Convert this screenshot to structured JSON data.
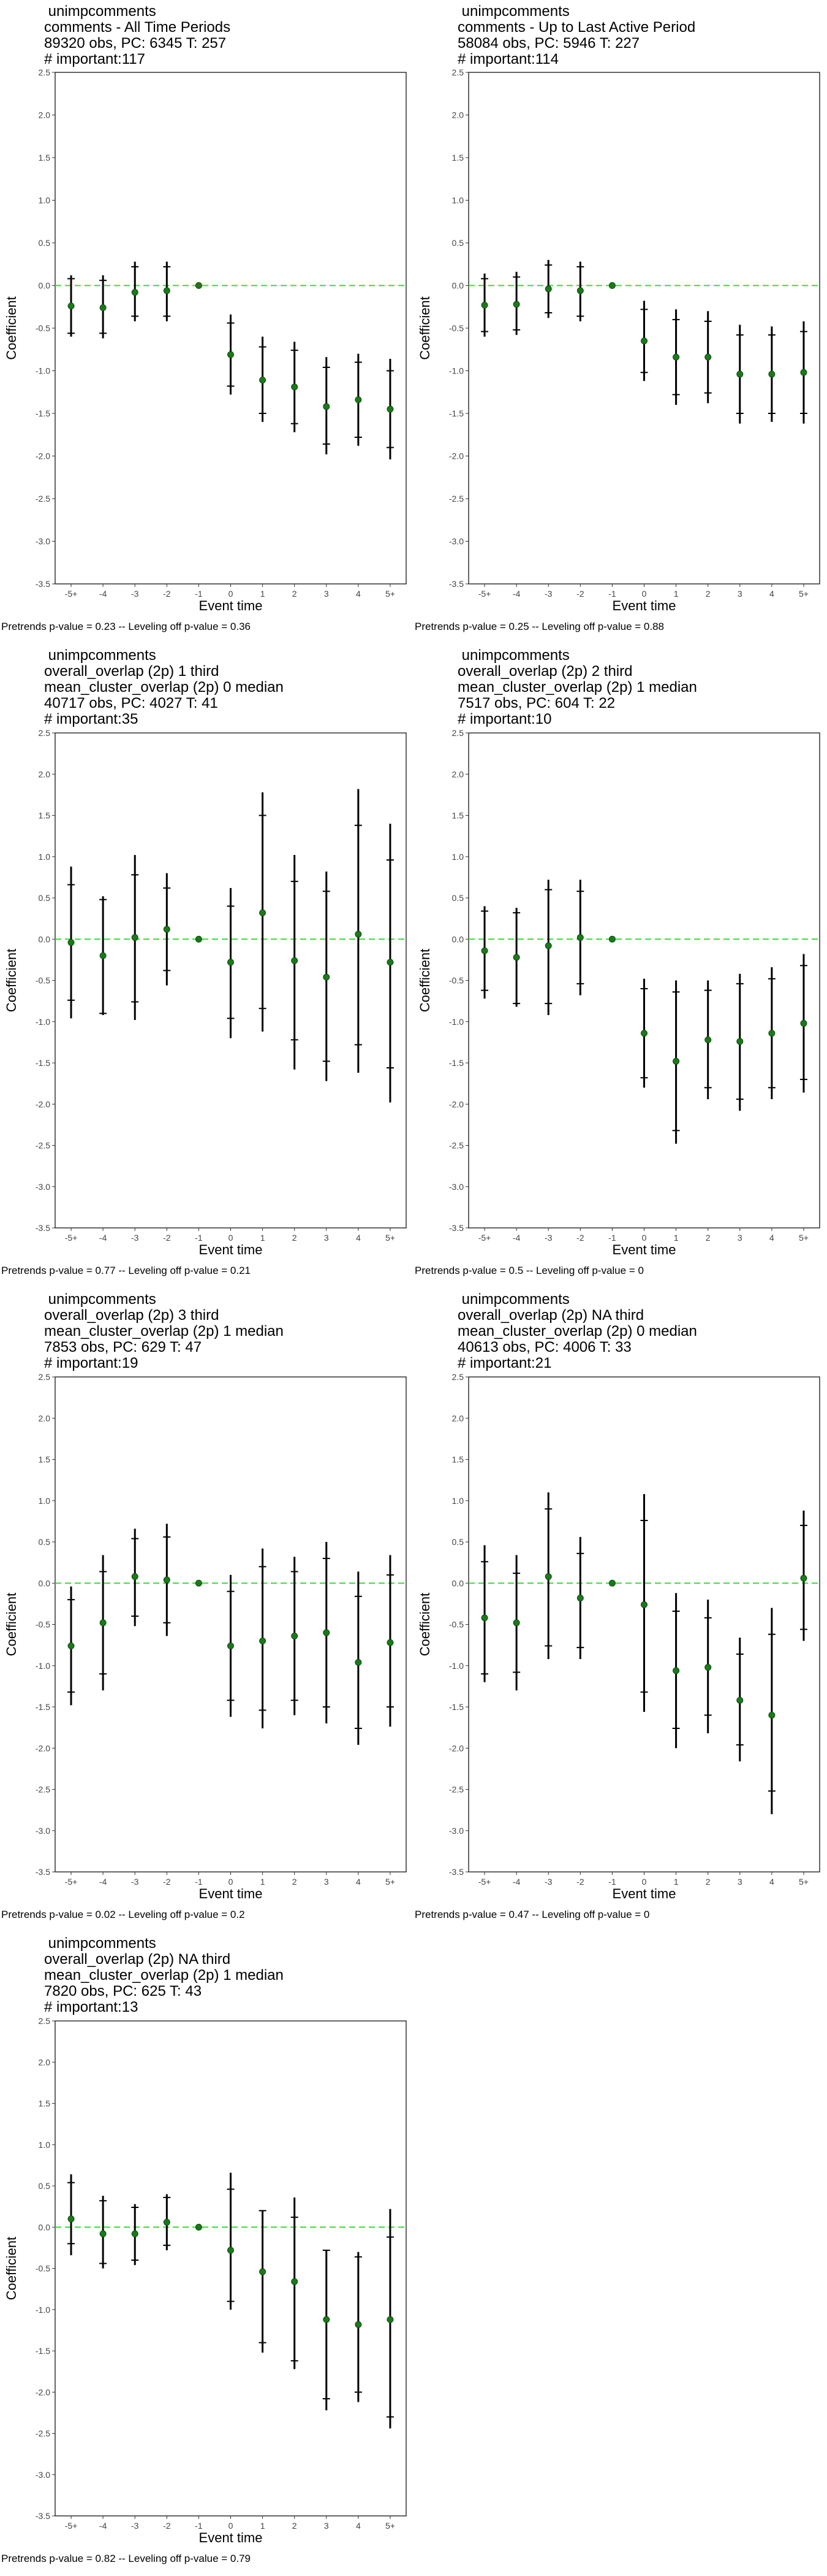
{
  "colors": {
    "point": "#1a7a1a",
    "zero_line": "#33dd33",
    "error_bar": "#000000",
    "frame": "#000000"
  },
  "chart_data": [
    {
      "type": "scatter",
      "title_lines": [
        " unimpcomments",
        "comments - All Time Periods",
        "89320 obs, PC: 6345 T: 257",
        "# important:117"
      ],
      "xlabel": "Event time",
      "ylabel": "Coefficient",
      "categories": [
        "-5+",
        "-4",
        "-3",
        "-2",
        "-1",
        "0",
        "1",
        "2",
        "3",
        "4",
        "5+"
      ],
      "ylim": [
        -3.5,
        2.5
      ],
      "grid": false,
      "y_ticks": [
        "-3.5",
        "-3.0",
        "-2.5",
        "-2.0",
        "-1.5",
        "-1.0",
        "-0.5",
        "0.0",
        "0.5",
        "1.0",
        "1.5",
        "2.0",
        "2.5"
      ],
      "values": [
        -0.24,
        -0.26,
        -0.08,
        -0.06,
        0.0,
        -0.81,
        -1.11,
        -1.19,
        -1.42,
        -1.34,
        -1.45
      ],
      "ci95_low": [
        -0.6,
        -0.62,
        -0.42,
        -0.42,
        0.0,
        -1.28,
        -1.6,
        -1.72,
        -1.98,
        -1.88,
        -2.04
      ],
      "ci95_high": [
        0.12,
        0.12,
        0.28,
        0.28,
        0.0,
        -0.34,
        -0.6,
        -0.66,
        -0.84,
        -0.8,
        -0.86
      ],
      "ci90_low": [
        -0.56,
        -0.56,
        -0.36,
        -0.36,
        0.0,
        -1.18,
        -1.5,
        -1.62,
        -1.86,
        -1.78,
        -1.9
      ],
      "ci90_high": [
        0.08,
        0.06,
        0.22,
        0.22,
        0.0,
        -0.44,
        -0.72,
        -0.76,
        -0.96,
        -0.9,
        -1.0
      ],
      "footer": "Pretrends p-value = 0.23 -- Leveling off p-value = 0.36"
    },
    {
      "type": "scatter",
      "title_lines": [
        " unimpcomments",
        "comments - Up to Last Active Period",
        "58084 obs, PC: 5946 T: 227",
        "# important:114"
      ],
      "xlabel": "Event time",
      "ylabel": "Coefficient",
      "categories": [
        "-5+",
        "-4",
        "-3",
        "-2",
        "-1",
        "0",
        "1",
        "2",
        "3",
        "4",
        "5+"
      ],
      "ylim": [
        -3.5,
        2.5
      ],
      "grid": false,
      "y_ticks": [
        "-3.5",
        "-3.0",
        "-2.5",
        "-2.0",
        "-1.5",
        "-1.0",
        "-0.5",
        "0.0",
        "0.5",
        "1.0",
        "1.5",
        "2.0",
        "2.5"
      ],
      "values": [
        -0.23,
        -0.22,
        -0.04,
        -0.06,
        0.0,
        -0.65,
        -0.84,
        -0.84,
        -1.04,
        -1.04,
        -1.02
      ],
      "ci95_low": [
        -0.6,
        -0.58,
        -0.38,
        -0.42,
        0.0,
        -1.12,
        -1.4,
        -1.38,
        -1.62,
        -1.6,
        -1.62
      ],
      "ci95_high": [
        0.14,
        0.16,
        0.3,
        0.28,
        0.0,
        -0.18,
        -0.28,
        -0.3,
        -0.46,
        -0.48,
        -0.42
      ],
      "ci90_low": [
        -0.54,
        -0.52,
        -0.32,
        -0.36,
        0.0,
        -1.02,
        -1.28,
        -1.26,
        -1.5,
        -1.5,
        -1.5
      ],
      "ci90_high": [
        0.08,
        0.1,
        0.24,
        0.22,
        0.0,
        -0.28,
        -0.4,
        -0.42,
        -0.58,
        -0.58,
        -0.54
      ],
      "footer": "Pretrends p-value = 0.25 -- Leveling off p-value = 0.88"
    },
    {
      "type": "scatter",
      "title_lines": [
        " unimpcomments",
        "overall_overlap (2p) 1 third",
        "mean_cluster_overlap (2p) 0 median",
        "40717 obs, PC: 4027 T: 41",
        "# important:35"
      ],
      "xlabel": "Event time",
      "ylabel": "Coefficient",
      "categories": [
        "-5+",
        "-4",
        "-3",
        "-2",
        "-1",
        "0",
        "1",
        "2",
        "3",
        "4",
        "5+"
      ],
      "ylim": [
        -3.5,
        2.5
      ],
      "grid": false,
      "y_ticks": [
        "-3.5",
        "-3.0",
        "-2.5",
        "-2.0",
        "-1.5",
        "-1.0",
        "-0.5",
        "0.0",
        "0.5",
        "1.0",
        "1.5",
        "2.0",
        "2.5"
      ],
      "values": [
        -0.04,
        -0.2,
        0.02,
        0.12,
        0.0,
        -0.28,
        0.32,
        -0.26,
        -0.46,
        0.06,
        -0.28
      ],
      "ci95_low": [
        -0.96,
        -0.92,
        -0.98,
        -0.56,
        0.0,
        -1.2,
        -1.12,
        -1.58,
        -1.72,
        -1.62,
        -1.98
      ],
      "ci95_high": [
        0.88,
        0.52,
        1.02,
        0.8,
        0.0,
        0.62,
        1.78,
        1.02,
        0.82,
        1.82,
        1.4
      ],
      "ci90_low": [
        -0.74,
        -0.9,
        -0.76,
        -0.38,
        0.0,
        -0.96,
        -0.84,
        -1.22,
        -1.48,
        -1.28,
        -1.56
      ],
      "ci90_high": [
        0.66,
        0.48,
        0.78,
        0.62,
        0.0,
        0.4,
        1.5,
        0.7,
        0.58,
        1.38,
        0.96
      ],
      "footer": "Pretrends p-value = 0.77 -- Leveling off p-value = 0.21"
    },
    {
      "type": "scatter",
      "title_lines": [
        " unimpcomments",
        "overall_overlap (2p) 2 third",
        "mean_cluster_overlap (2p) 1 median",
        "7517 obs, PC: 604 T: 22",
        "# important:10"
      ],
      "xlabel": "Event time",
      "ylabel": "Coefficient",
      "categories": [
        "-5+",
        "-4",
        "-3",
        "-2",
        "-1",
        "0",
        "1",
        "2",
        "3",
        "4",
        "5+"
      ],
      "ylim": [
        -3.5,
        2.5
      ],
      "grid": false,
      "y_ticks": [
        "-3.5",
        "-3.0",
        "-2.5",
        "-2.0",
        "-1.5",
        "-1.0",
        "-0.5",
        "0.0",
        "0.5",
        "1.0",
        "1.5",
        "2.0",
        "2.5"
      ],
      "values": [
        -0.14,
        -0.22,
        -0.08,
        0.02,
        0.0,
        -1.14,
        -1.48,
        -1.22,
        -1.24,
        -1.14,
        -1.02
      ],
      "ci95_low": [
        -0.72,
        -0.82,
        -0.92,
        -0.68,
        0.0,
        -1.8,
        -2.48,
        -1.94,
        -2.08,
        -1.94,
        -1.86
      ],
      "ci95_high": [
        0.4,
        0.38,
        0.72,
        0.72,
        0.0,
        -0.48,
        -0.5,
        -0.5,
        -0.42,
        -0.34,
        -0.18
      ],
      "ci90_low": [
        -0.62,
        -0.78,
        -0.78,
        -0.54,
        0.0,
        -1.68,
        -2.32,
        -1.8,
        -1.94,
        -1.8,
        -1.7
      ],
      "ci90_high": [
        0.34,
        0.32,
        0.6,
        0.58,
        0.0,
        -0.6,
        -0.64,
        -0.62,
        -0.54,
        -0.48,
        -0.32
      ],
      "footer": "Pretrends p-value = 0.5 -- Leveling off p-value = 0"
    },
    {
      "type": "scatter",
      "title_lines": [
        " unimpcomments",
        "overall_overlap (2p) 3 third",
        "mean_cluster_overlap (2p) 1 median",
        "7853 obs, PC: 629 T: 47",
        "# important:19"
      ],
      "xlabel": "Event time",
      "ylabel": "Coefficient",
      "categories": [
        "-5+",
        "-4",
        "-3",
        "-2",
        "-1",
        "0",
        "1",
        "2",
        "3",
        "4",
        "5+"
      ],
      "ylim": [
        -3.5,
        2.5
      ],
      "grid": false,
      "y_ticks": [
        "-3.5",
        "-3.0",
        "-2.5",
        "-2.0",
        "-1.5",
        "-1.0",
        "-0.5",
        "0.0",
        "0.5",
        "1.0",
        "1.5",
        "2.0",
        "2.5"
      ],
      "values": [
        -0.76,
        -0.48,
        0.08,
        0.04,
        0.0,
        -0.76,
        -0.7,
        -0.64,
        -0.6,
        -0.96,
        -0.72
      ],
      "ci95_low": [
        -1.48,
        -1.3,
        -0.52,
        -0.64,
        0.0,
        -1.62,
        -1.76,
        -1.6,
        -1.7,
        -1.96,
        -1.74
      ],
      "ci95_high": [
        -0.04,
        0.34,
        0.66,
        0.72,
        0.0,
        0.1,
        0.42,
        0.32,
        0.5,
        0.14,
        0.34
      ],
      "ci90_low": [
        -1.32,
        -1.1,
        -0.4,
        -0.48,
        0.0,
        -1.42,
        -1.54,
        -1.42,
        -1.5,
        -1.76,
        -1.5
      ],
      "ci90_high": [
        -0.2,
        0.14,
        0.54,
        0.56,
        0.0,
        -0.1,
        0.2,
        0.14,
        0.3,
        -0.16,
        0.1
      ],
      "footer": "Pretrends p-value = 0.02 -- Leveling off p-value = 0.2"
    },
    {
      "type": "scatter",
      "title_lines": [
        " unimpcomments",
        "overall_overlap (2p) NA third",
        "mean_cluster_overlap (2p) 0 median",
        "40613 obs, PC: 4006 T: 33",
        "# important:21"
      ],
      "xlabel": "Event time",
      "ylabel": "Coefficient",
      "categories": [
        "-5+",
        "-4",
        "-3",
        "-2",
        "-1",
        "0",
        "1",
        "2",
        "3",
        "4",
        "5+"
      ],
      "ylim": [
        -3.5,
        2.5
      ],
      "grid": false,
      "y_ticks": [
        "-3.5",
        "-3.0",
        "-2.5",
        "-2.0",
        "-1.5",
        "-1.0",
        "-0.5",
        "0.0",
        "0.5",
        "1.0",
        "1.5",
        "2.0",
        "2.5"
      ],
      "values": [
        -0.42,
        -0.48,
        0.08,
        -0.18,
        0.0,
        -0.26,
        -1.06,
        -1.02,
        -1.42,
        -1.6,
        0.06
      ],
      "ci95_low": [
        -1.2,
        -1.3,
        -0.92,
        -0.92,
        0.0,
        -1.56,
        -2.0,
        -1.82,
        -2.16,
        -2.8,
        -0.7
      ],
      "ci95_high": [
        0.46,
        0.34,
        1.1,
        0.56,
        0.0,
        1.08,
        -0.12,
        -0.2,
        -0.66,
        -0.3,
        0.88
      ],
      "ci90_low": [
        -1.1,
        -1.08,
        -0.76,
        -0.78,
        0.0,
        -1.32,
        -1.76,
        -1.6,
        -1.96,
        -2.52,
        -0.56
      ],
      "ci90_high": [
        0.26,
        0.12,
        0.9,
        0.36,
        0.0,
        0.76,
        -0.34,
        -0.42,
        -0.86,
        -0.62,
        0.7
      ],
      "footer": "Pretrends p-value = 0.47 -- Leveling off p-value = 0"
    },
    {
      "type": "scatter",
      "title_lines": [
        " unimpcomments",
        "overall_overlap (2p) NA third",
        "mean_cluster_overlap (2p) 1 median",
        "7820 obs, PC: 625 T: 43",
        "# important:13"
      ],
      "xlabel": "Event time",
      "ylabel": "Coefficient",
      "categories": [
        "-5+",
        "-4",
        "-3",
        "-2",
        "-1",
        "0",
        "1",
        "2",
        "3",
        "4",
        "5+"
      ],
      "ylim": [
        -3.5,
        2.5
      ],
      "grid": false,
      "y_ticks": [
        "-3.5",
        "-3.0",
        "-2.5",
        "-2.0",
        "-1.5",
        "-1.0",
        "-0.5",
        "0.0",
        "0.5",
        "1.0",
        "1.5",
        "2.0",
        "2.5"
      ],
      "values": [
        0.1,
        -0.08,
        -0.08,
        0.06,
        0.0,
        -0.28,
        -0.54,
        -0.66,
        -1.12,
        -1.18,
        -1.12
      ],
      "ci95_low": [
        -0.34,
        -0.5,
        -0.46,
        -0.28,
        0.0,
        -1.0,
        -1.52,
        -1.72,
        -2.22,
        -2.12,
        -2.44
      ],
      "ci95_high": [
        0.64,
        0.38,
        0.28,
        0.4,
        0.0,
        0.66,
        0.2,
        0.36,
        -0.28,
        -0.3,
        0.22
      ],
      "ci90_low": [
        -0.2,
        -0.44,
        -0.4,
        -0.22,
        0.0,
        -0.9,
        -1.4,
        -1.62,
        -2.08,
        -2.0,
        -2.3
      ],
      "ci90_high": [
        0.54,
        0.32,
        0.24,
        0.36,
        0.0,
        0.46,
        0.2,
        0.12,
        -0.28,
        -0.36,
        -0.12
      ],
      "footer": "Pretrends p-value = 0.82 -- Leveling off p-value = 0.79"
    }
  ]
}
